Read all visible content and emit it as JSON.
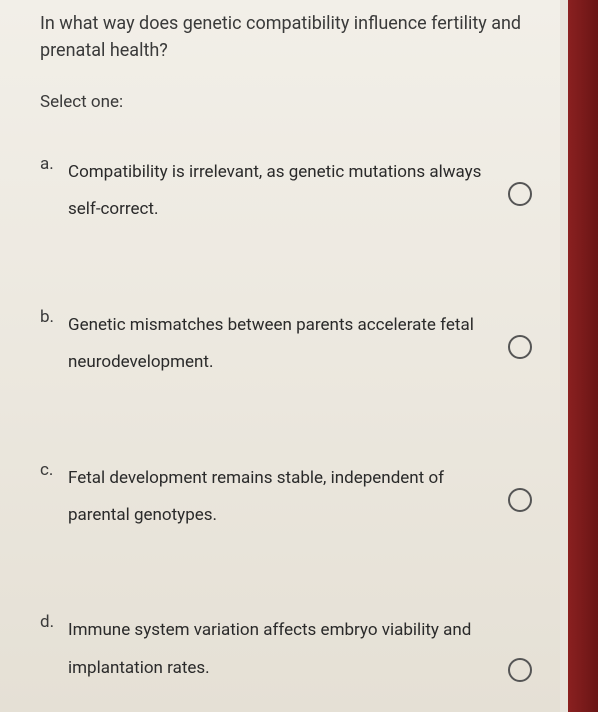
{
  "question": {
    "text": "In what way does genetic compatibility influence fertility and prenatal health?",
    "prompt": "Select one:"
  },
  "options": [
    {
      "letter": "a.",
      "text": "Compatibility is irrelevant, as genetic mutations always self-correct."
    },
    {
      "letter": "b.",
      "text": "Genetic mismatches between parents accelerate fetal neurodevelopment."
    },
    {
      "letter": "c.",
      "text": "Fetal development remains stable, independent of parental genotypes."
    },
    {
      "letter": "d.",
      "text": "Immune system variation affects embryo viability and implantation rates."
    }
  ],
  "colors": {
    "background": "#ece8df",
    "text_primary": "#3a3a3a",
    "text_option": "#2a2a2a",
    "radio_border": "#555555",
    "bezel": "#8a2020"
  },
  "typography": {
    "question_fontsize": 18,
    "option_fontsize": 17,
    "line_height": 2.2
  }
}
